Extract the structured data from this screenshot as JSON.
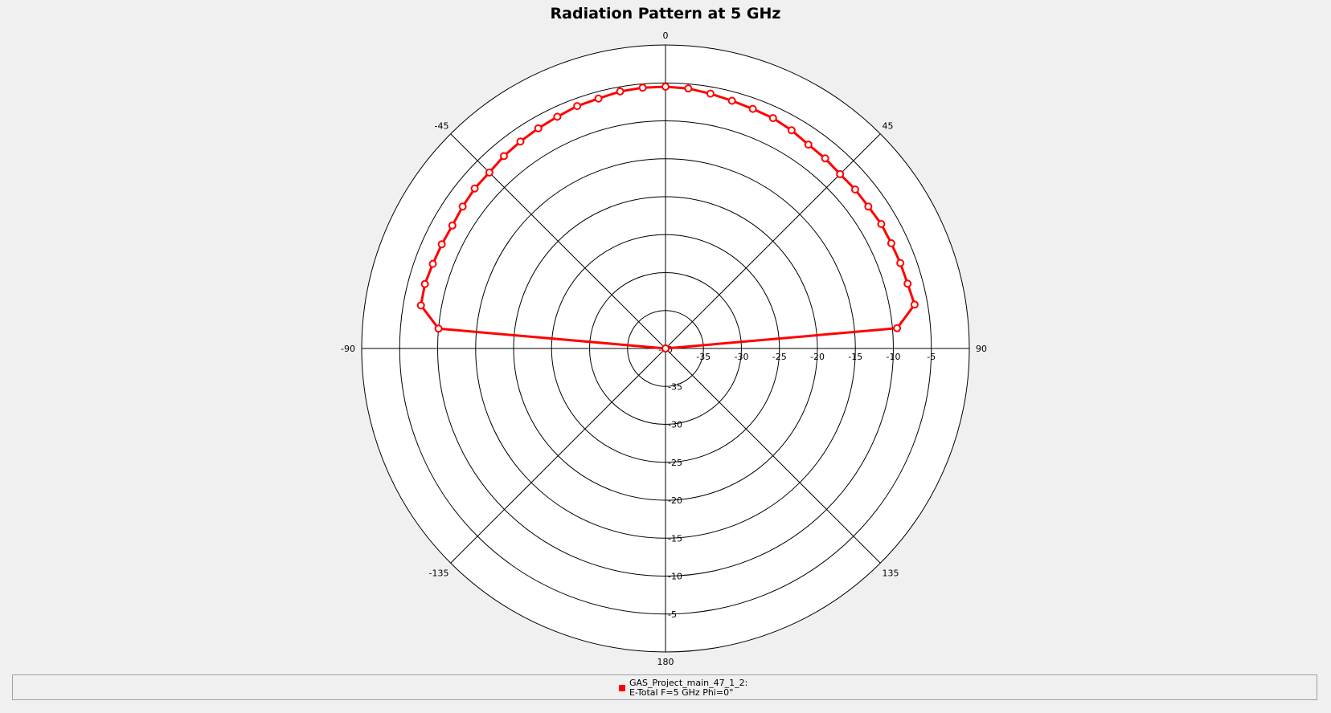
{
  "chart_data": {
    "type": "polar-line",
    "title": "Radiation Pattern at 5 GHz",
    "radial_range": [
      -40,
      0
    ],
    "radial_ticks": [
      -35,
      -30,
      -25,
      -20,
      -15,
      -10,
      -5
    ],
    "angular_ticks": [
      {
        "angle": 0,
        "label": "0"
      },
      {
        "angle": 45,
        "label": "45"
      },
      {
        "angle": 90,
        "label": "90"
      },
      {
        "angle": 135,
        "label": "135"
      },
      {
        "angle": 180,
        "label": "180"
      },
      {
        "angle": -135,
        "label": "-135"
      },
      {
        "angle": -90,
        "label": "-90"
      },
      {
        "angle": -45,
        "label": "-45"
      }
    ],
    "grid": true,
    "series": [
      {
        "legend_line1": "GAS_Project_main_47_1_2:",
        "legend_line2": "E-Total  F=5 GHz  Phi=0°",
        "color": "#ff0000",
        "marker": "open-circle",
        "points": [
          {
            "theta": -90,
            "r": -40.0
          },
          {
            "theta": -85,
            "r": -10.0
          },
          {
            "theta": -80,
            "r": -7.3
          },
          {
            "theta": -75,
            "r": -7.2
          },
          {
            "theta": -70,
            "r": -7.4
          },
          {
            "theta": -65,
            "r": -7.5
          },
          {
            "theta": -60,
            "r": -7.6
          },
          {
            "theta": -55,
            "r": -7.4
          },
          {
            "theta": -50,
            "r": -7.2
          },
          {
            "theta": -45,
            "r": -7.2
          },
          {
            "theta": -40,
            "r": -6.9
          },
          {
            "theta": -35,
            "r": -6.7
          },
          {
            "theta": -30,
            "r": -6.5
          },
          {
            "theta": -25,
            "r": -6.3
          },
          {
            "theta": -20,
            "r": -6.0
          },
          {
            "theta": -15,
            "r": -5.9
          },
          {
            "theta": -10,
            "r": -5.6
          },
          {
            "theta": -5,
            "r": -5.5
          },
          {
            "theta": 0,
            "r": -5.5
          },
          {
            "theta": 5,
            "r": -5.6
          },
          {
            "theta": 10,
            "r": -5.9
          },
          {
            "theta": 15,
            "r": -6.2
          },
          {
            "theta": 20,
            "r": -6.4
          },
          {
            "theta": 25,
            "r": -6.5
          },
          {
            "theta": 30,
            "r": -6.8
          },
          {
            "theta": 35,
            "r": -7.2
          },
          {
            "theta": 40,
            "r": -7.3
          },
          {
            "theta": 45,
            "r": -7.5
          },
          {
            "theta": 50,
            "r": -7.4
          },
          {
            "theta": 55,
            "r": -7.4
          },
          {
            "theta": 60,
            "r": -7.2
          },
          {
            "theta": 65,
            "r": -7.2
          },
          {
            "theta": 70,
            "r": -7.1
          },
          {
            "theta": 75,
            "r": -7.0
          },
          {
            "theta": 80,
            "r": -6.7
          },
          {
            "theta": 85,
            "r": -9.4
          },
          {
            "theta": 90,
            "r": -40.0
          }
        ]
      }
    ]
  }
}
